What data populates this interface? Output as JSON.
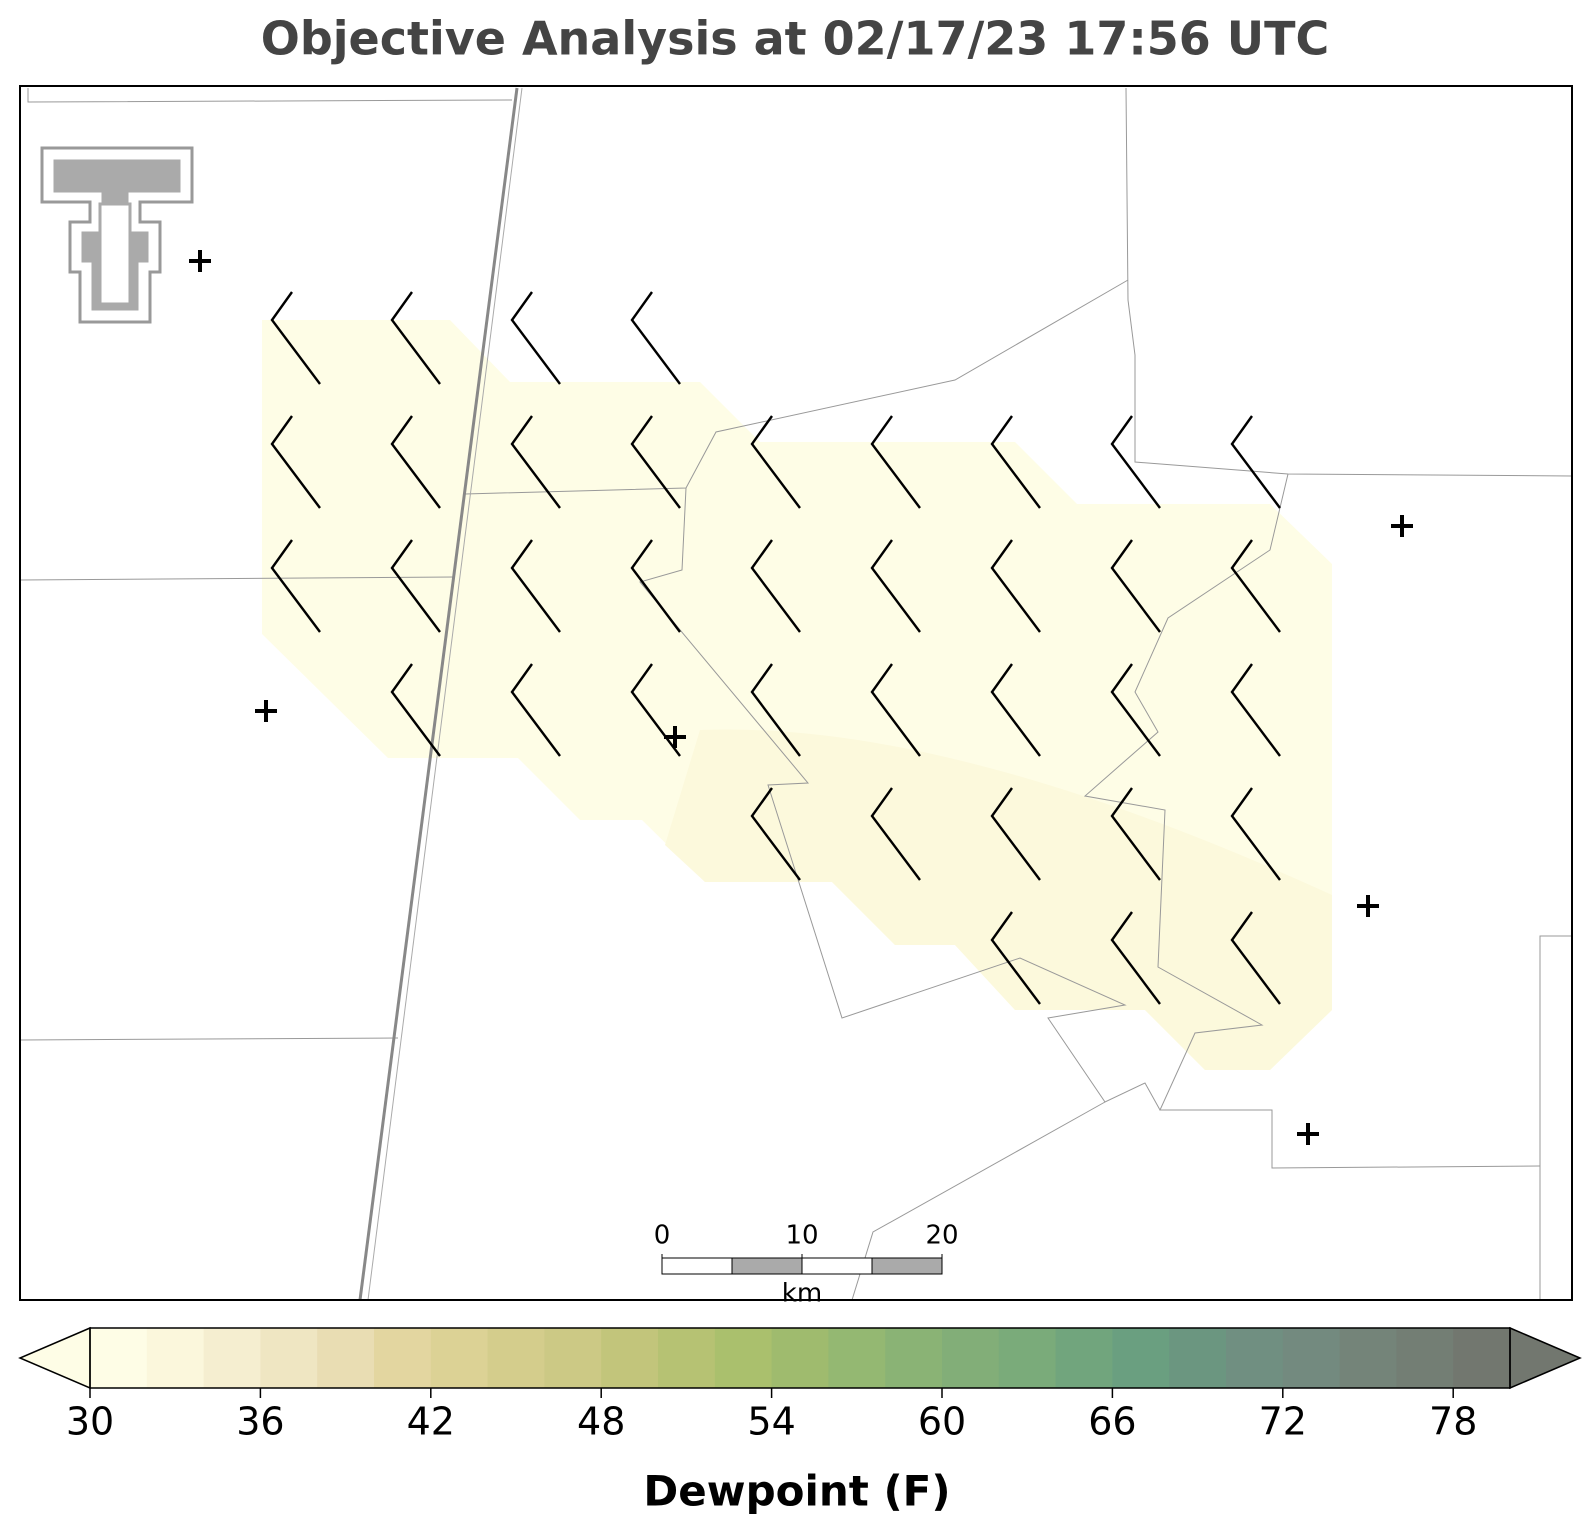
{
  "title": "Objective Analysis at 02/17/23 17:56 UTC",
  "scale_bar": {
    "ticks": [
      0,
      10,
      20
    ],
    "unit": "km"
  },
  "colorbar": {
    "label": "Dewpoint (F)",
    "lim": [
      30,
      80
    ],
    "ticks": [
      30,
      36,
      42,
      48,
      54,
      60,
      66,
      72,
      78
    ],
    "levels": [
      30,
      32,
      34,
      36,
      38,
      40,
      42,
      44,
      46,
      48,
      50,
      52,
      54,
      56,
      58,
      60,
      62,
      64,
      66,
      68,
      70,
      72,
      74,
      76,
      78,
      80
    ],
    "colors": [
      "#fefde6",
      "#fbf7dc",
      "#f5eed0",
      "#efe6c2",
      "#e9ddb3",
      "#e3d6a0",
      "#dcd295",
      "#d4cd8c",
      "#ccc985",
      "#c2c57b",
      "#b6c273",
      "#aac06d",
      "#9fbb6e",
      "#94b872",
      "#8ab375",
      "#82ae78",
      "#7aab7a",
      "#71a57d",
      "#6a9f80",
      "#6b9680",
      "#708f81",
      "#738a7f",
      "#748479",
      "#737e74",
      "#72776f"
    ]
  }
}
